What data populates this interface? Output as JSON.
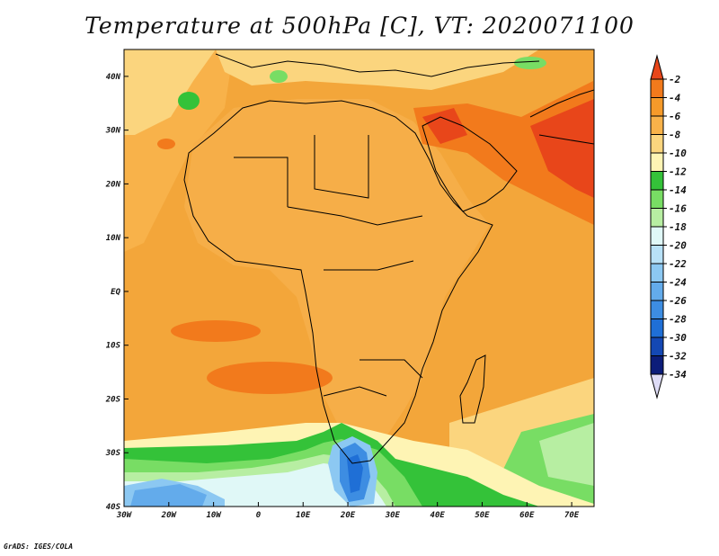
{
  "title": "Temperature at 500hPa [C], VT: 2020071100",
  "credit": "GrADS: IGES/COLA",
  "colors": {
    "ocean": "#f3a63a",
    "land": "#f6ae48",
    "coastline": "#000000"
  },
  "map": {
    "lat_ticks": [
      "40N",
      "30N",
      "20N",
      "10N",
      "EQ",
      "10S",
      "20S",
      "30S",
      "40S"
    ],
    "lon_ticks": [
      "30W",
      "20W",
      "10W",
      "0",
      "10E",
      "20E",
      "30E",
      "40E",
      "50E",
      "60E",
      "70E"
    ],
    "lat_range": [
      -40,
      45
    ],
    "lon_range": [
      -30,
      75
    ],
    "units": "C"
  },
  "colorbar": {
    "labels": [
      "-2",
      "-4",
      "-6",
      "-8",
      "-10",
      "-12",
      "-14",
      "-16",
      "-18",
      "-20",
      "-22",
      "-24",
      "-26",
      "-28",
      "-30",
      "-32",
      "-34"
    ],
    "colors": [
      "#e8461a",
      "#f27a1c",
      "#f59a2a",
      "#f8b24a",
      "#fbd57e",
      "#fef4b4",
      "#34c239",
      "#78dd64",
      "#b7eea2",
      "#e0f8f7",
      "#b8e1f7",
      "#8cc8f2",
      "#63abeb",
      "#3d8de2",
      "#1f6fd6",
      "#1448b4",
      "#0c1d7a",
      "#dedcf6"
    ]
  }
}
